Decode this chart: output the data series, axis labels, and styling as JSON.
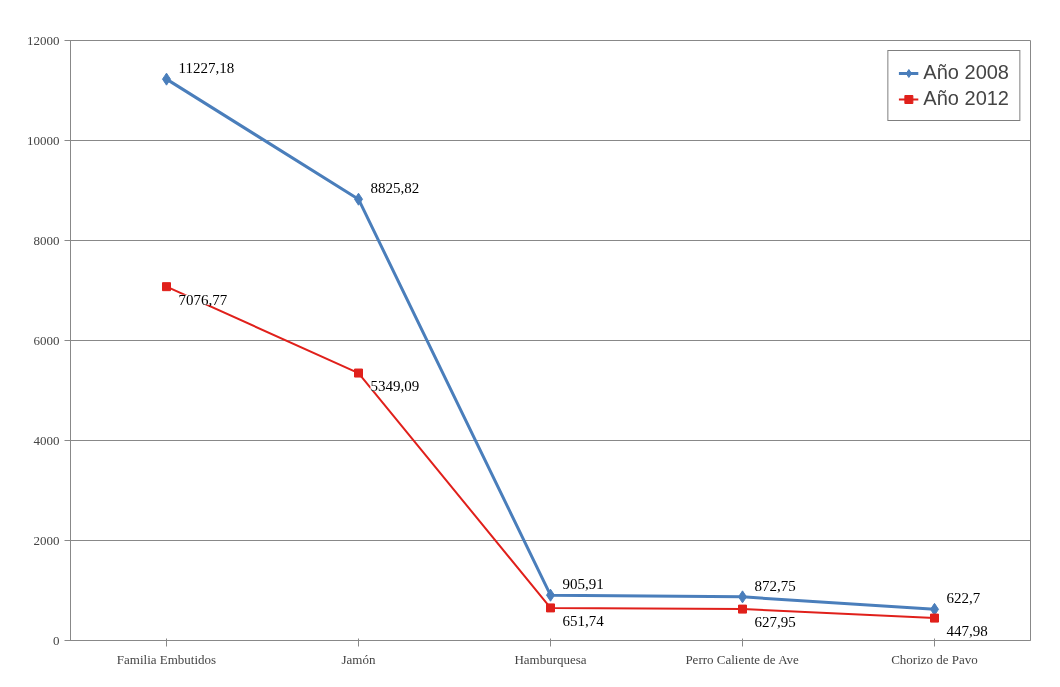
{
  "chart_data": {
    "type": "line",
    "categories": [
      "Familia Embutidos",
      "Jamón",
      "Hamburquesa",
      "Perro Caliente de Ave",
      "Chorizo de Pavo"
    ],
    "series": [
      {
        "name": "Año 2008",
        "color": "#4a7ebb",
        "marker": "diamond",
        "values": [
          11227.18,
          8825.82,
          905.91,
          872.75,
          622.7
        ],
        "value_labels": [
          "11227,18",
          "8825,82",
          "905,91",
          "872,75",
          "622,7"
        ]
      },
      {
        "name": "Año 2012",
        "color": "#e0201b",
        "marker": "square",
        "values": [
          7076.77,
          5349.09,
          651.74,
          627.95,
          447.98
        ],
        "value_labels": [
          "7076,77",
          "5349,09",
          "651,74",
          "627,95",
          "447,98"
        ]
      }
    ],
    "ylim": [
      0,
      12000
    ],
    "yticks": [
      0,
      2000,
      4000,
      6000,
      8000,
      10000,
      12000
    ],
    "grid": "y",
    "legend": "top right",
    "line_style": "solid"
  }
}
